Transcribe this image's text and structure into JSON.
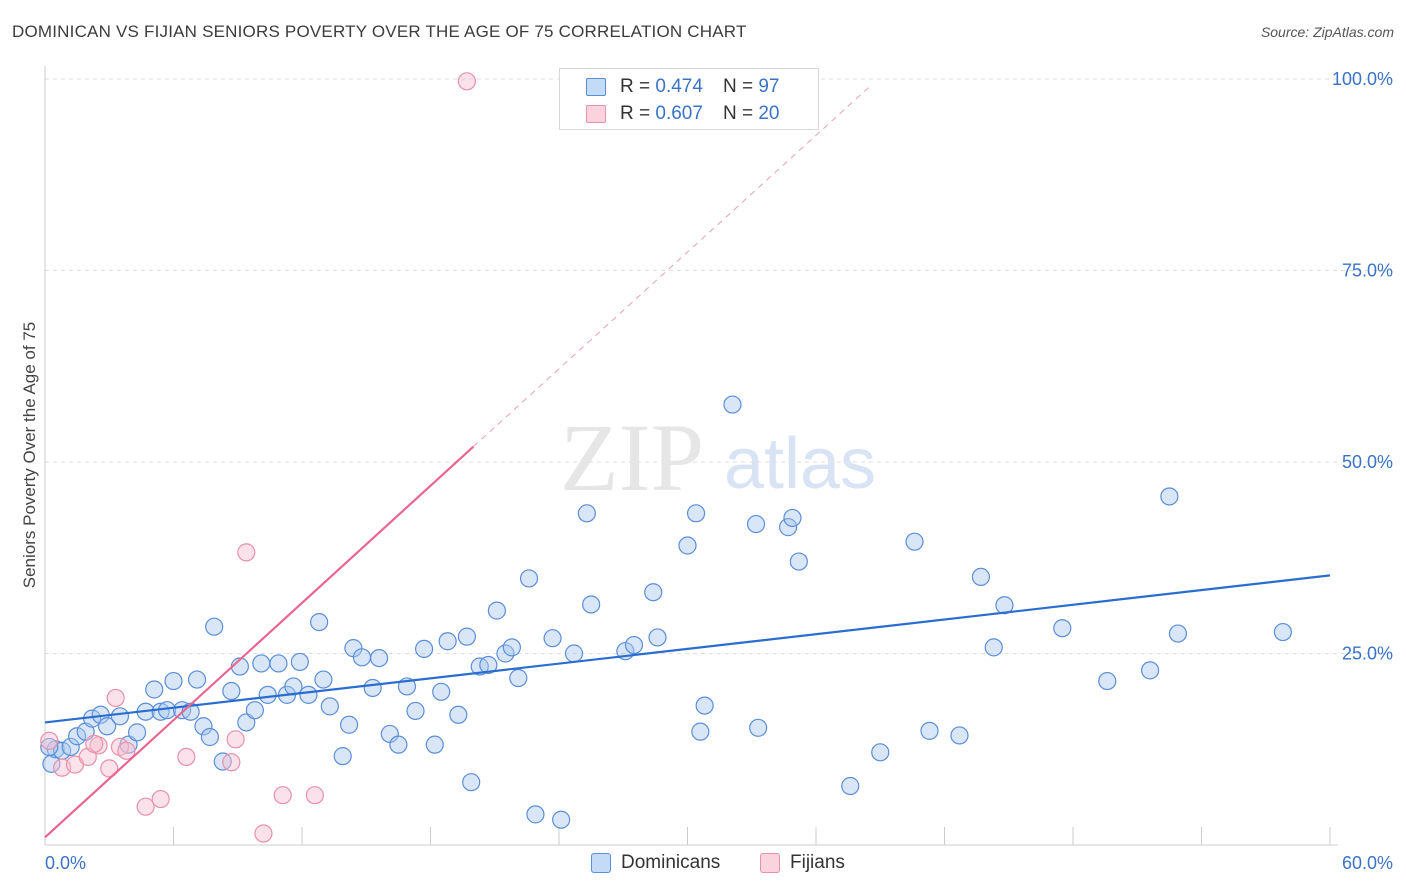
{
  "title": "DOMINICAN VS FIJIAN SENIORS POVERTY OVER THE AGE OF 75 CORRELATION CHART",
  "source": "Source: ZipAtlas.com",
  "watermark": {
    "zip": "ZIP",
    "atlas": "atlas"
  },
  "legend": {
    "r_label": "R =",
    "n_label": "N =",
    "rows": [
      {
        "series": "Dominicans",
        "r": "0.474",
        "n": "97",
        "fill": "#a8c8f0",
        "stroke": "#5b8ed8"
      },
      {
        "series": "Fijians",
        "r": "0.607",
        "n": "20",
        "fill": "#f7bfd0",
        "stroke": "#e890aa"
      }
    ]
  },
  "bottom_legend": [
    "Dominicans",
    "Fijians"
  ],
  "colors": {
    "blue_point_fill": "rgba(168,200,240,0.45)",
    "blue_point_stroke": "#5b8ed8",
    "pink_point_fill": "rgba(247,191,208,0.45)",
    "pink_point_stroke": "#e890aa",
    "blue_line": "#2a6dd0",
    "pink_line": "#e8668f",
    "tick_label": "#3a73c6"
  },
  "chart_data": {
    "type": "scatter",
    "title": "DOMINICAN VS FIJIAN SENIORS POVERTY OVER THE AGE OF 75 CORRELATION CHART",
    "xlabel": "",
    "ylabel": "Seniors Poverty Over the Age of 75",
    "xlim": [
      0,
      60
    ],
    "ylim": [
      0,
      100
    ],
    "x_tick_labels": [
      "0.0%",
      "60.0%"
    ],
    "y_ticks": [
      25,
      50,
      75,
      100
    ],
    "y_tick_labels": [
      "25.0%",
      "50.0%",
      "75.0%",
      "100.0%"
    ],
    "series": [
      {
        "name": "Dominicans",
        "points": [
          [
            0.3,
            10.6
          ],
          [
            0.5,
            12.5
          ],
          [
            0.8,
            12.3
          ],
          [
            1.2,
            12.8
          ],
          [
            1.5,
            14.2
          ],
          [
            1.9,
            14.8
          ],
          [
            2.2,
            16.5
          ],
          [
            2.6,
            17.0
          ],
          [
            2.9,
            15.5
          ],
          [
            3.5,
            16.8
          ],
          [
            3.9,
            13.1
          ],
          [
            4.3,
            14.7
          ],
          [
            4.7,
            17.4
          ],
          [
            5.1,
            20.3
          ],
          [
            5.4,
            17.4
          ],
          [
            5.7,
            17.6
          ],
          [
            6.0,
            21.4
          ],
          [
            6.4,
            17.6
          ],
          [
            6.8,
            17.4
          ],
          [
            7.1,
            21.6
          ],
          [
            7.4,
            15.5
          ],
          [
            7.7,
            14.1
          ],
          [
            7.9,
            28.5
          ],
          [
            8.3,
            10.9
          ],
          [
            8.7,
            20.1
          ],
          [
            9.1,
            23.3
          ],
          [
            9.4,
            16.0
          ],
          [
            9.8,
            17.6
          ],
          [
            10.1,
            23.7
          ],
          [
            10.4,
            19.6
          ],
          [
            10.9,
            23.7
          ],
          [
            11.3,
            19.6
          ],
          [
            11.6,
            20.7
          ],
          [
            11.9,
            23.9
          ],
          [
            12.3,
            19.6
          ],
          [
            12.8,
            29.1
          ],
          [
            13.0,
            21.6
          ],
          [
            13.3,
            18.1
          ],
          [
            13.9,
            11.6
          ],
          [
            14.2,
            15.7
          ],
          [
            14.4,
            25.7
          ],
          [
            14.8,
            24.5
          ],
          [
            15.3,
            20.5
          ],
          [
            15.6,
            24.4
          ],
          [
            16.1,
            14.5
          ],
          [
            16.5,
            13.1
          ],
          [
            16.9,
            20.7
          ],
          [
            17.3,
            17.5
          ],
          [
            17.7,
            25.6
          ],
          [
            18.2,
            13.1
          ],
          [
            18.5,
            20.0
          ],
          [
            18.8,
            26.6
          ],
          [
            19.3,
            17.0
          ],
          [
            19.7,
            27.2
          ],
          [
            19.9,
            8.2
          ],
          [
            20.3,
            23.3
          ],
          [
            20.7,
            23.5
          ],
          [
            21.1,
            30.6
          ],
          [
            21.5,
            25.0
          ],
          [
            21.8,
            25.8
          ],
          [
            22.1,
            21.8
          ],
          [
            22.6,
            34.8
          ],
          [
            22.9,
            4.0
          ],
          [
            23.7,
            27.0
          ],
          [
            24.1,
            3.3
          ],
          [
            24.7,
            25.0
          ],
          [
            25.3,
            43.3
          ],
          [
            25.5,
            31.4
          ],
          [
            27.1,
            25.3
          ],
          [
            27.5,
            26.1
          ],
          [
            28.4,
            33.0
          ],
          [
            28.6,
            27.1
          ],
          [
            30.0,
            39.1
          ],
          [
            30.4,
            43.3
          ],
          [
            30.6,
            14.8
          ],
          [
            30.8,
            18.2
          ],
          [
            32.1,
            57.5
          ],
          [
            33.2,
            41.9
          ],
          [
            33.3,
            15.3
          ],
          [
            34.7,
            41.5
          ],
          [
            34.9,
            42.7
          ],
          [
            35.2,
            37.0
          ],
          [
            37.6,
            7.7
          ],
          [
            39.0,
            12.1
          ],
          [
            40.6,
            39.6
          ],
          [
            41.3,
            14.9
          ],
          [
            42.7,
            14.3
          ],
          [
            43.7,
            35.0
          ],
          [
            44.3,
            25.8
          ],
          [
            44.8,
            31.3
          ],
          [
            47.5,
            28.3
          ],
          [
            49.6,
            21.4
          ],
          [
            51.6,
            22.8
          ],
          [
            52.5,
            45.5
          ],
          [
            52.9,
            27.6
          ],
          [
            57.8,
            27.8
          ],
          [
            0.2,
            12.8
          ]
        ]
      },
      {
        "name": "Fijians",
        "points": [
          [
            0.2,
            13.6
          ],
          [
            0.8,
            10.1
          ],
          [
            1.4,
            10.5
          ],
          [
            2.0,
            11.5
          ],
          [
            2.5,
            13.0
          ],
          [
            3.0,
            10.0
          ],
          [
            3.3,
            19.2
          ],
          [
            3.5,
            12.8
          ],
          [
            3.8,
            12.3
          ],
          [
            4.7,
            5.0
          ],
          [
            5.4,
            6.0
          ],
          [
            6.6,
            11.5
          ],
          [
            8.7,
            10.8
          ],
          [
            8.9,
            13.8
          ],
          [
            9.4,
            38.2
          ],
          [
            10.2,
            1.5
          ],
          [
            11.1,
            6.5
          ],
          [
            12.6,
            6.5
          ],
          [
            19.7,
            99.7
          ],
          [
            2.3,
            13.2
          ]
        ]
      }
    ],
    "trend_lines": [
      {
        "series": "Dominicans",
        "x": [
          0,
          60
        ],
        "y": [
          16.0,
          35.2
        ],
        "style": "solid"
      },
      {
        "series": "Fijians",
        "x": [
          0,
          20
        ],
        "y": [
          1.0,
          52.0
        ],
        "style": "solid"
      },
      {
        "series": "Fijians",
        "x": [
          20,
          38.5
        ],
        "y": [
          52.0,
          99.0
        ],
        "style": "dashed"
      }
    ]
  }
}
